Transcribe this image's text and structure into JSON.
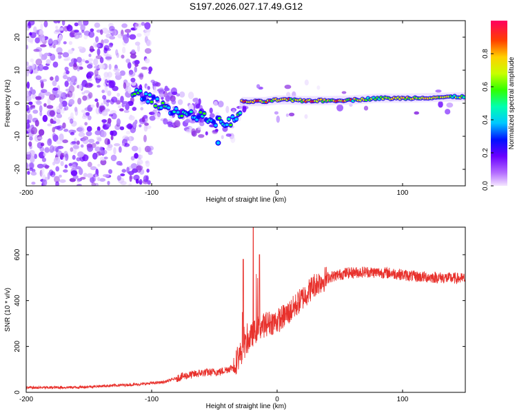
{
  "title": "S197.2026.027.17.49.G12",
  "colors": {
    "snr_line": "#e8312c",
    "spectrogram_dots": "#7b1fff",
    "ridge_peak": "#ff1a1a"
  },
  "chart_data": [
    {
      "type": "heatmap",
      "name": "spectrogram",
      "xlabel": "Height of straight line (km)",
      "ylabel": "Frequency (Hz)",
      "xlim": [
        -200,
        150
      ],
      "ylim": [
        -25,
        25
      ],
      "xticks": [
        -200,
        -100,
        0,
        100
      ],
      "xtick_labels": [
        "-200",
        "-100",
        "0",
        "100"
      ],
      "yticks": [
        -20,
        -10,
        0,
        10,
        20
      ],
      "ytick_labels": [
        "-20",
        "-10",
        "0",
        "10",
        "20"
      ],
      "colorbar": {
        "label": "Normalized spectral amplitude",
        "range": [
          0,
          1
        ],
        "ticks": [
          0.0,
          0.2,
          0.4,
          0.6,
          0.8
        ],
        "tick_labels": [
          "0.0",
          "0.2",
          "0.4",
          "0.6",
          "0.8"
        ],
        "colormap": "rainbow (violet to red)"
      },
      "ridge": [
        {
          "x": -110,
          "y": 3.0
        },
        {
          "x": -100,
          "y": 1.0
        },
        {
          "x": -90,
          "y": -1.0
        },
        {
          "x": -80,
          "y": -2.5
        },
        {
          "x": -70,
          "y": -3.5
        },
        {
          "x": -60,
          "y": -4.0
        },
        {
          "x": -50,
          "y": -5.5
        },
        {
          "x": -40,
          "y": -6.0
        },
        {
          "x": -30,
          "y": -4.0
        },
        {
          "x": -28,
          "y": 0.5
        },
        {
          "x": -20,
          "y": 0.5
        },
        {
          "x": -10,
          "y": 0.5
        },
        {
          "x": 0,
          "y": 1.0
        },
        {
          "x": 10,
          "y": 1.0
        },
        {
          "x": 20,
          "y": 0.8
        },
        {
          "x": 40,
          "y": 0.8
        },
        {
          "x": 60,
          "y": 1.0
        },
        {
          "x": 80,
          "y": 1.5
        },
        {
          "x": 100,
          "y": 1.5
        },
        {
          "x": 120,
          "y": 1.7
        },
        {
          "x": 150,
          "y": 2.0
        }
      ],
      "isolated_peak": {
        "x": -47,
        "y": -12
      }
    },
    {
      "type": "line",
      "name": "snr",
      "xlabel": "Height of straight line (km)",
      "ylabel": "SNR (10 * v/v)",
      "xlim": [
        -200,
        150
      ],
      "ylim": [
        0,
        720
      ],
      "xticks": [
        -200,
        -100,
        0,
        100
      ],
      "xtick_labels": [
        "-200",
        "-100",
        "0",
        "100"
      ],
      "yticks": [
        0,
        200,
        400,
        600
      ],
      "ytick_labels": [
        "0",
        "200",
        "400",
        "600"
      ],
      "series": [
        {
          "name": "SNR",
          "points": [
            {
              "x": -200,
              "y": 20
            },
            {
              "x": -160,
              "y": 22
            },
            {
              "x": -130,
              "y": 30
            },
            {
              "x": -110,
              "y": 35
            },
            {
              "x": -90,
              "y": 45
            },
            {
              "x": -75,
              "y": 70
            },
            {
              "x": -60,
              "y": 85
            },
            {
              "x": -45,
              "y": 90
            },
            {
              "x": -35,
              "y": 110
            },
            {
              "x": -30,
              "y": 160
            },
            {
              "x": -25,
              "y": 210
            },
            {
              "x": -20,
              "y": 250
            },
            {
              "x": -15,
              "y": 280
            },
            {
              "x": -8,
              "y": 300
            },
            {
              "x": 0,
              "y": 310
            },
            {
              "x": 10,
              "y": 350
            },
            {
              "x": 20,
              "y": 410
            },
            {
              "x": 30,
              "y": 470
            },
            {
              "x": 40,
              "y": 500
            },
            {
              "x": 55,
              "y": 520
            },
            {
              "x": 70,
              "y": 525
            },
            {
              "x": 90,
              "y": 520
            },
            {
              "x": 110,
              "y": 505
            },
            {
              "x": 130,
              "y": 500
            },
            {
              "x": 150,
              "y": 495
            }
          ],
          "spikes": [
            {
              "x": -27,
              "y": 580
            },
            {
              "x": -19,
              "y": 720
            },
            {
              "x": -14,
              "y": 600
            }
          ]
        }
      ]
    }
  ]
}
